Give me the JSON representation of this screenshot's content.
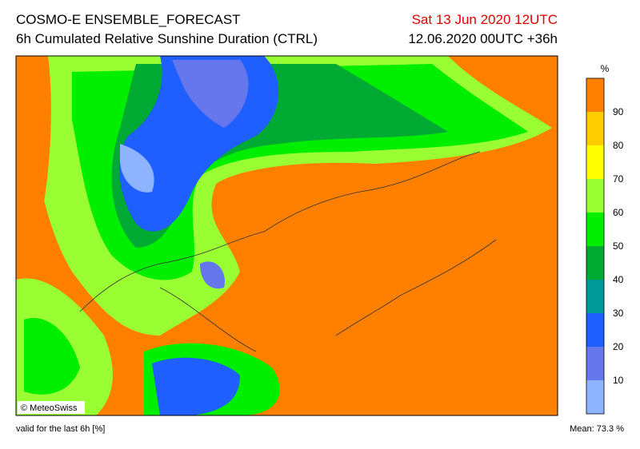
{
  "header": {
    "title": "COSMO-E ENSEMBLE_FORECAST",
    "subtitle": "6h Cumulated Relative Sunshine Duration (CTRL)",
    "valid_time": "Sat 13 Jun 2020 12UTC",
    "run": "12.06.2020 00UTC +36h"
  },
  "colorbar": {
    "unit": "%",
    "labels": [
      90,
      80,
      70,
      60,
      50,
      40,
      30,
      20,
      10
    ]
  },
  "map": {
    "credit": "© MeteoSwiss"
  },
  "footer": {
    "note": "valid for the last 6h [%]",
    "mean": "Mean:  73.3 %"
  }
}
